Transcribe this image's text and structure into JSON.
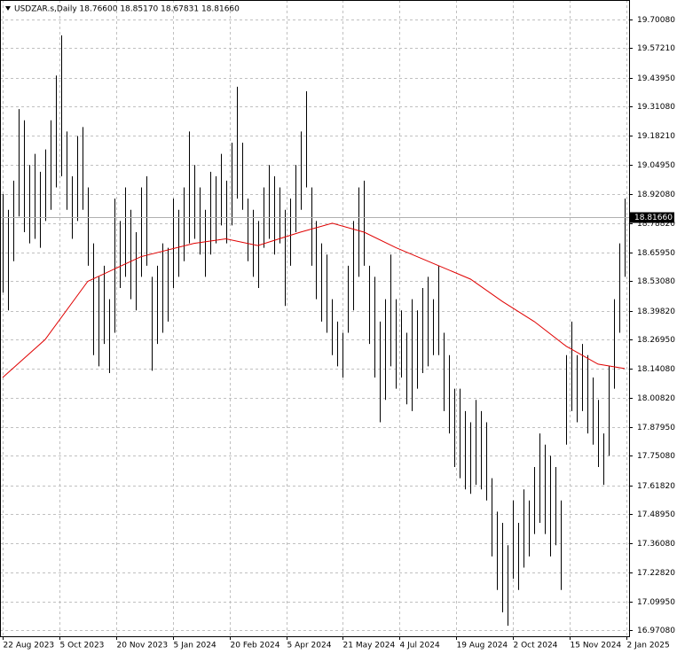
{
  "chart_data": {
    "type": "range-bar",
    "title": "USDZAR.s,Daily  18.76600 18.85170 18.67831 18.81660",
    "bar_color": "#000000",
    "grid": true,
    "x": [
      0,
      3,
      6,
      9,
      12,
      15,
      18,
      21,
      24,
      27,
      30,
      33,
      36,
      39,
      42,
      45,
      48,
      51,
      54,
      57,
      60,
      63,
      66,
      69,
      72,
      75,
      78,
      81,
      84,
      87,
      90,
      93,
      96,
      99,
      102,
      105,
      108,
      111,
      114,
      117,
      120,
      123,
      126,
      129,
      132,
      135,
      138,
      141,
      144,
      147,
      150,
      153,
      156,
      159,
      162,
      165,
      168,
      171,
      174,
      177,
      180,
      183,
      186,
      189,
      192,
      195,
      198,
      201,
      204,
      207,
      210,
      213,
      216,
      219,
      222,
      225,
      228,
      231,
      234,
      237,
      240,
      243,
      246,
      249,
      252,
      255,
      258,
      261,
      264,
      267,
      270,
      273,
      276,
      279,
      282,
      285,
      288,
      291,
      294,
      297,
      300,
      303,
      306,
      309,
      312,
      315,
      318,
      321,
      324,
      327,
      330,
      333,
      336,
      339,
      342,
      345,
      348,
      351
    ],
    "high": [
      18.92,
      18.85,
      18.98,
      19.3,
      19.25,
      19.05,
      19.1,
      19.02,
      19.12,
      19.25,
      19.45,
      19.63,
      19.2,
      19.0,
      19.18,
      19.22,
      18.95,
      18.7,
      18.55,
      18.6,
      18.45,
      18.9,
      18.8,
      18.95,
      18.85,
      18.75,
      18.95,
      19.0,
      18.55,
      18.6,
      18.7,
      18.68,
      18.9,
      18.85,
      18.95,
      19.2,
      19.05,
      18.95,
      18.85,
      19.02,
      19.0,
      19.1,
      18.98,
      19.15,
      19.4,
      19.15,
      18.9,
      18.85,
      18.8,
      18.95,
      19.05,
      19.0,
      18.95,
      18.85,
      18.9,
      19.05,
      19.2,
      19.38,
      18.95,
      18.8,
      18.7,
      18.65,
      18.45,
      18.35,
      18.3,
      18.6,
      18.8,
      18.95,
      18.98,
      18.6,
      18.55,
      18.35,
      18.45,
      18.65,
      18.45,
      18.4,
      18.3,
      18.45,
      18.4,
      18.5,
      18.55,
      18.45,
      18.6,
      18.3,
      18.2,
      18.05,
      18.05,
      17.95,
      17.9,
      18.0,
      17.95,
      17.9,
      17.65,
      17.5,
      17.45,
      17.35,
      17.55,
      17.45,
      17.6,
      17.55,
      17.7,
      17.85,
      17.8,
      17.75,
      17.7,
      17.55,
      18.2,
      18.35,
      18.2,
      18.25,
      18.2,
      18.1,
      18.0,
      17.85,
      18.15,
      18.45,
      18.7,
      18.9
    ],
    "low": [
      18.48,
      18.4,
      18.62,
      18.82,
      18.75,
      18.7,
      18.72,
      18.68,
      18.8,
      18.85,
      18.95,
      19.0,
      18.85,
      18.72,
      18.8,
      18.85,
      18.6,
      18.2,
      18.15,
      18.25,
      18.12,
      18.3,
      18.5,
      18.55,
      18.45,
      18.4,
      18.55,
      18.6,
      18.13,
      18.25,
      18.3,
      18.35,
      18.5,
      18.55,
      18.62,
      18.7,
      18.72,
      18.65,
      18.55,
      18.65,
      18.7,
      18.78,
      18.7,
      18.78,
      18.9,
      18.85,
      18.62,
      18.55,
      18.5,
      18.68,
      18.72,
      18.65,
      18.7,
      18.42,
      18.6,
      18.75,
      18.85,
      18.95,
      18.6,
      18.45,
      18.35,
      18.3,
      18.2,
      18.15,
      18.1,
      18.3,
      18.4,
      18.55,
      18.6,
      18.25,
      18.1,
      17.9,
      18.0,
      18.15,
      18.05,
      18.1,
      17.98,
      17.95,
      18.05,
      18.12,
      18.15,
      18.2,
      18.2,
      17.95,
      17.85,
      17.7,
      17.65,
      17.6,
      17.58,
      17.62,
      17.6,
      17.55,
      17.3,
      17.15,
      17.05,
      16.99,
      17.2,
      17.15,
      17.25,
      17.3,
      17.4,
      17.45,
      17.4,
      17.3,
      17.35,
      17.15,
      17.8,
      17.95,
      17.9,
      17.95,
      17.85,
      17.8,
      17.7,
      17.62,
      17.75,
      18.05,
      18.3,
      18.55
    ],
    "ma": {
      "color": "#e00000",
      "x": [
        0,
        24,
        48,
        78,
        108,
        126,
        144,
        156,
        168,
        186,
        204,
        222,
        246,
        264,
        282,
        300,
        318,
        336,
        351
      ],
      "values": [
        18.1,
        18.27,
        18.53,
        18.64,
        18.7,
        18.72,
        18.69,
        18.72,
        18.75,
        18.79,
        18.75,
        18.68,
        18.6,
        18.54,
        18.44,
        18.35,
        18.24,
        18.16,
        18.14
      ]
    },
    "last_price": {
      "value": 18.8166,
      "label": "18.81660"
    },
    "xlim": [
      -1.5,
      353.5
    ],
    "xticks": [
      {
        "value": 0,
        "label": "22 Aug 2023"
      },
      {
        "value": 32,
        "label": "5 Oct 2023"
      },
      {
        "value": 64,
        "label": "20 Nov 2023"
      },
      {
        "value": 96,
        "label": "5 Jan 2024"
      },
      {
        "value": 128,
        "label": "20 Feb 2024"
      },
      {
        "value": 160,
        "label": "5 Apr 2024"
      },
      {
        "value": 192,
        "label": "21 May 2024"
      },
      {
        "value": 224,
        "label": "4 Jul 2024"
      },
      {
        "value": 256,
        "label": "19 Aug 2024"
      },
      {
        "value": 288,
        "label": "2 Oct 2024"
      },
      {
        "value": 320,
        "label": "15 Nov 2024"
      },
      {
        "value": 352,
        "label": "2 Jan 2025"
      }
    ],
    "ylim": [
      16.943,
      19.788
    ],
    "yticks": [
      {
        "value": 19.7008,
        "label": "19.70080"
      },
      {
        "value": 19.5721,
        "label": "19.57210"
      },
      {
        "value": 19.4395,
        "label": "19.43950"
      },
      {
        "value": 19.3108,
        "label": "19.31080"
      },
      {
        "value": 19.1821,
        "label": "19.18210"
      },
      {
        "value": 19.0495,
        "label": "19.04950"
      },
      {
        "value": 18.9208,
        "label": "18.92080"
      },
      {
        "value": 18.7882,
        "label": "18.78820"
      },
      {
        "value": 18.6595,
        "label": "18.65950"
      },
      {
        "value": 18.5308,
        "label": "18.53080"
      },
      {
        "value": 18.3982,
        "label": "18.39820"
      },
      {
        "value": 18.2695,
        "label": "18.26950"
      },
      {
        "value": 18.1408,
        "label": "18.14080"
      },
      {
        "value": 18.0082,
        "label": "18.00820"
      },
      {
        "value": 17.8795,
        "label": "17.87950"
      },
      {
        "value": 17.7508,
        "label": "17.75080"
      },
      {
        "value": 17.6182,
        "label": "17.61820"
      },
      {
        "value": 17.4895,
        "label": "17.48950"
      },
      {
        "value": 17.3608,
        "label": "17.36080"
      },
      {
        "value": 17.2282,
        "label": "17.22820"
      },
      {
        "value": 17.0995,
        "label": "17.09950"
      },
      {
        "value": 16.9708,
        "label": "16.97080"
      }
    ]
  }
}
